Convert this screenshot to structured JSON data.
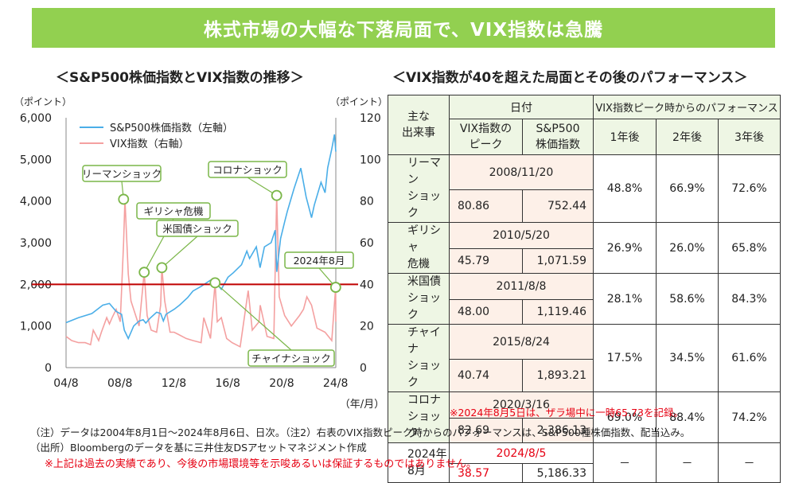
{
  "banner_title": "株式市場の大幅な下落局面で、VIX指数は急騰",
  "left_subtitle": "＜S&P500株価指数とVIX指数の推移＞",
  "right_subtitle": "＜VIX指数が40を超えた局面とその後のパフォーマンス＞",
  "colors": {
    "banner": "#92d050",
    "sp500": "#4aaee8",
    "vix": "#f4a0a0",
    "threshold": "#c00000",
    "callout": "#7ab648",
    "accent_red": "#e60012"
  },
  "chart_data": {
    "type": "line",
    "title": "S&P500株価指数とVIX指数の推移",
    "left_axis_unit": "（ポイント）",
    "right_axis_unit": "（ポイント）",
    "x_unit": "（年/月）",
    "x_ticks": [
      "04/8",
      "08/8",
      "12/8",
      "16/8",
      "20/8",
      "24/8"
    ],
    "x_tick_values": [
      2004.58,
      2008.58,
      2012.58,
      2016.58,
      2020.58,
      2024.58
    ],
    "xlim": [
      2004.58,
      2024.6
    ],
    "left_ylim": [
      0,
      6000
    ],
    "left_ticks": [
      "0",
      "1,000",
      "2,000",
      "3,000",
      "4,000",
      "5,000",
      "6,000"
    ],
    "right_ylim": [
      0,
      120
    ],
    "right_ticks": [
      "0",
      "20",
      "40",
      "60",
      "80",
      "100",
      "120"
    ],
    "threshold": {
      "axis": "right",
      "value": 40
    },
    "legend": [
      "S&P500株価指数（左軸）",
      "VIX指数（右軸）"
    ],
    "series": [
      {
        "name": "S&P500株価指数（左軸）",
        "axis": "left",
        "x": [
          2004.58,
          2005.5,
          2006.5,
          2007.3,
          2007.8,
          2008.3,
          2008.7,
          2008.9,
          2009.2,
          2009.6,
          2010.0,
          2010.3,
          2010.5,
          2010.8,
          2011.3,
          2011.6,
          2011.8,
          2012.0,
          2012.6,
          2013.0,
          2013.6,
          2014.0,
          2014.6,
          2015.3,
          2015.6,
          2016.1,
          2016.6,
          2017.0,
          2017.6,
          2018.0,
          2018.2,
          2018.7,
          2018.98,
          2019.3,
          2019.8,
          2020.1,
          2020.22,
          2020.5,
          2020.8,
          2021.0,
          2021.5,
          2022.0,
          2022.4,
          2022.8,
          2023.0,
          2023.5,
          2023.8,
          2024.0,
          2024.3,
          2024.5,
          2024.6
        ],
        "values": [
          1080,
          1200,
          1300,
          1500,
          1540,
          1350,
          1280,
          900,
          700,
          1000,
          1120,
          1150,
          1070,
          1180,
          1330,
          1300,
          1120,
          1280,
          1400,
          1500,
          1680,
          1840,
          1950,
          2100,
          2080,
          1880,
          2170,
          2280,
          2470,
          2800,
          2620,
          2900,
          2400,
          2900,
          3000,
          3300,
          2300,
          3100,
          3500,
          3750,
          4300,
          4790,
          4100,
          3600,
          3900,
          4450,
          4200,
          4800,
          5250,
          5600,
          5186
        ]
      },
      {
        "name": "VIX指数（右軸）",
        "axis": "right",
        "x": [
          2004.58,
          2005.0,
          2005.5,
          2006.0,
          2006.4,
          2006.6,
          2007.0,
          2007.2,
          2007.6,
          2007.8,
          2008.0,
          2008.3,
          2008.6,
          2008.85,
          2008.95,
          2009.2,
          2009.4,
          2009.8,
          2010.0,
          2010.38,
          2010.6,
          2010.9,
          2011.3,
          2011.6,
          2011.69,
          2011.9,
          2012.3,
          2012.6,
          2012.9,
          2013.5,
          2014.0,
          2014.6,
          2014.8,
          2015.3,
          2015.64,
          2015.8,
          2016.1,
          2016.5,
          2016.9,
          2017.5,
          2018.1,
          2018.4,
          2018.9,
          2018.99,
          2019.5,
          2020.0,
          2020.21,
          2020.4,
          2020.8,
          2021.3,
          2021.9,
          2022.2,
          2022.45,
          2022.8,
          2023.2,
          2023.8,
          2024.3,
          2024.59,
          2024.6
        ],
        "values": [
          15,
          13,
          12,
          12,
          11,
          18,
          13,
          17,
          24,
          21,
          24,
          28,
          22,
          60,
          80.86,
          45,
          32,
          24,
          20,
          45.79,
          25,
          18,
          17,
          30,
          48.0,
          32,
          17,
          17,
          16,
          14,
          13,
          12,
          24,
          14,
          40.74,
          22,
          24,
          14,
          12,
          10,
          37,
          18,
          22,
          30,
          15,
          14,
          82.69,
          34,
          25,
          20,
          25,
          28,
          34,
          30,
          19,
          17,
          13,
          38.57,
          22
        ]
      }
    ],
    "annotations": [
      {
        "label": "リーマンショック",
        "x": 2008.85,
        "value": 80.86
      },
      {
        "label": "ギリシャ危機",
        "x": 2010.38,
        "value": 45.79
      },
      {
        "label": "米国債ショック",
        "x": 2011.69,
        "value": 48.0
      },
      {
        "label": "チャイナショック",
        "x": 2015.64,
        "value": 40.74
      },
      {
        "label": "コロナショック",
        "x": 2020.21,
        "value": 82.69
      },
      {
        "label": "2024年8月",
        "x": 2024.59,
        "value": 38.57
      }
    ]
  },
  "table": {
    "header": {
      "event": "主な\n出来事",
      "date_group": "日付",
      "perf_group": "VIX指数ピーク時からのパフォーマンス",
      "vix_peak": "VIX指数の\nピーク",
      "sp500": "S&P500\n株価指数",
      "y1": "1年後",
      "y2": "2年後",
      "y3": "3年後"
    },
    "rows": [
      {
        "event": "リーマン\nショック",
        "date": "2008/11/20",
        "vix": "80.86",
        "sp": "752.44",
        "y1": "48.8%",
        "y2": "66.9%",
        "y3": "72.6%"
      },
      {
        "event": "ギリシャ\n危機",
        "date": "2010/5/20",
        "vix": "45.79",
        "sp": "1,071.59",
        "y1": "26.9%",
        "y2": "26.0%",
        "y3": "65.8%"
      },
      {
        "event": "米国債\nショック",
        "date": "2011/8/8",
        "vix": "48.00",
        "sp": "1,119.46",
        "y1": "28.1%",
        "y2": "58.6%",
        "y3": "84.3%"
      },
      {
        "event": "チャイナ\nショック",
        "date": "2015/8/24",
        "vix": "40.74",
        "sp": "1,893.21",
        "y1": "17.5%",
        "y2": "34.5%",
        "y3": "61.6%"
      },
      {
        "event": "コロナ\nショック",
        "date": "2020/3/16",
        "vix": "82.69",
        "sp": "2,386.13",
        "y1": "69.0%",
        "y2": "88.4%",
        "y3": "74.2%"
      },
      {
        "event": "2024年\n8月",
        "date": "2024/8/5",
        "vix": "38.57",
        "sp": "5,186.33",
        "y1": "－",
        "y2": "－",
        "y3": "－"
      }
    ]
  },
  "table_note": "※2024年8月5日は、ザラ場中に一時65.73を記録。",
  "footnote1": "（注）データは2004年8月1日～2024年8月6日、日次。（注2）右表のVIX指数ピーク時からのパフォーマンスは、S&P500種株価指数、配当込み。",
  "footnote2": "（出所）Bloombergのデータを基に三井住友DSアセットマネジメント作成",
  "disclaimer": "※上記は過去の実績であり、今後の市場環境等を示唆あるいは保証するものではありません。"
}
